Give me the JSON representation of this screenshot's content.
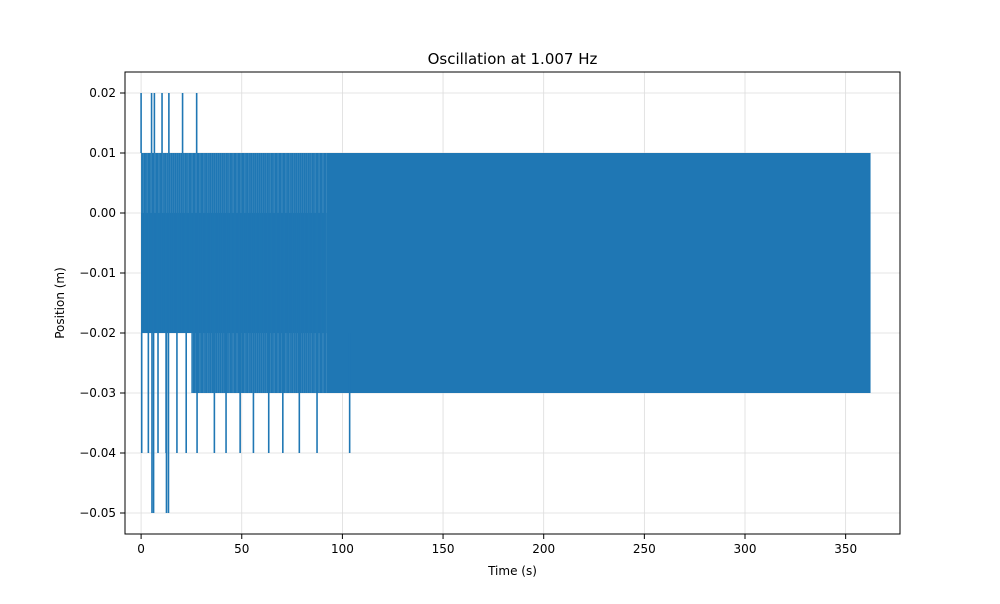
{
  "chart_data": {
    "type": "line",
    "title": "Oscillation at 1.007 Hz",
    "xlabel": "Time (s)",
    "ylabel": "Position (m)",
    "xlim": [
      -8,
      377
    ],
    "ylim": [
      -0.0535,
      0.0235
    ],
    "xticks": [
      0,
      50,
      100,
      150,
      200,
      250,
      300,
      350
    ],
    "yticks": [
      0.02,
      0.01,
      0.0,
      -0.01,
      -0.02,
      -0.03,
      -0.04,
      -0.05
    ],
    "xtick_labels": [
      "0",
      "50",
      "100",
      "150",
      "200",
      "250",
      "300",
      "350"
    ],
    "ytick_labels": [
      "0.02",
      "0.01",
      "0.00",
      "−0.01",
      "−0.02",
      "−0.03",
      "−0.04",
      "−0.05"
    ],
    "grid": true,
    "series": [
      {
        "color": "#1f77b4",
        "x_start": 0,
        "x_end": 362,
        "frequency_hz": 1.007,
        "steady_band": [
          -0.03,
          0.01
        ],
        "body_range": [
          -0.02,
          0.0
        ],
        "transient_end": 92,
        "spikes": [
          {
            "x": 0.0,
            "y": 0.02
          },
          {
            "x": 0.3,
            "y": -0.04
          },
          {
            "x": 5.2,
            "y": 0.02
          },
          {
            "x": 6.6,
            "y": 0.02
          },
          {
            "x": 10.4,
            "y": 0.02
          },
          {
            "x": 13.8,
            "y": 0.02
          },
          {
            "x": 20.6,
            "y": 0.02
          },
          {
            "x": 27.6,
            "y": 0.02
          },
          {
            "x": 3.6,
            "y": -0.04
          },
          {
            "x": 8.4,
            "y": -0.04
          },
          {
            "x": 12.4,
            "y": -0.04
          },
          {
            "x": 17.8,
            "y": -0.04
          },
          {
            "x": 22.4,
            "y": -0.04
          },
          {
            "x": 27.8,
            "y": -0.04
          },
          {
            "x": 36.4,
            "y": -0.04
          },
          {
            "x": 42.2,
            "y": -0.04
          },
          {
            "x": 49.2,
            "y": -0.04
          },
          {
            "x": 55.8,
            "y": -0.04
          },
          {
            "x": 63.4,
            "y": -0.04
          },
          {
            "x": 70.4,
            "y": -0.04
          },
          {
            "x": 78.6,
            "y": -0.04
          },
          {
            "x": 87.4,
            "y": -0.04
          },
          {
            "x": 103.6,
            "y": -0.04
          },
          {
            "x": 5.4,
            "y": -0.05
          },
          {
            "x": 6.2,
            "y": -0.05
          },
          {
            "x": 12.6,
            "y": -0.05
          },
          {
            "x": 13.6,
            "y": -0.05
          }
        ]
      }
    ]
  }
}
